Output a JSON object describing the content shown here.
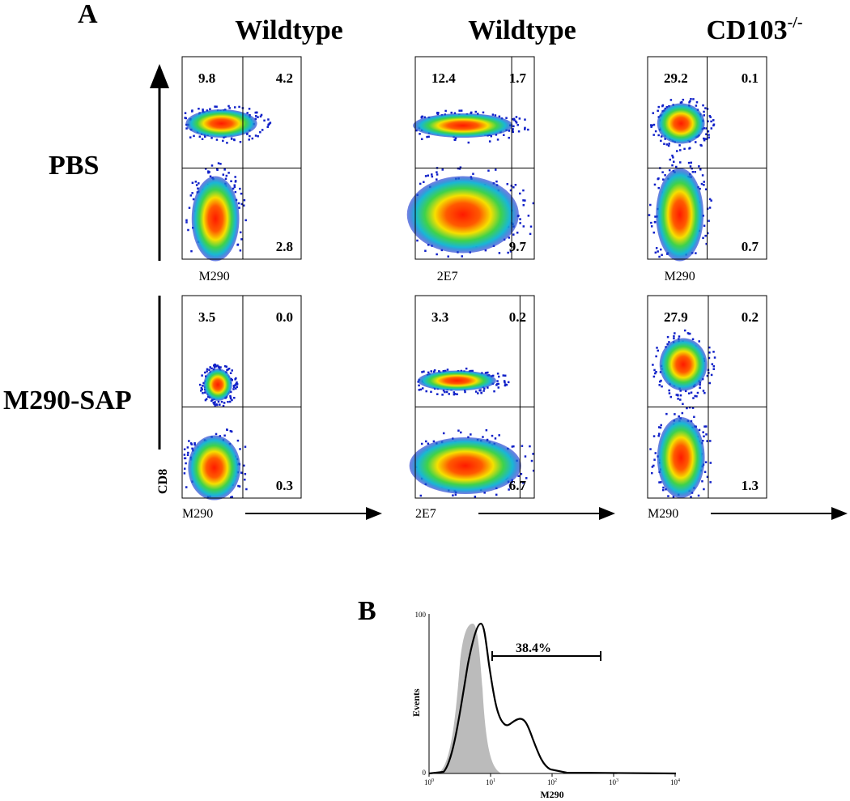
{
  "panel_a": {
    "label": "A",
    "columns": [
      {
        "text": "Wildtype"
      },
      {
        "text": "Wildtype"
      },
      {
        "text": "CD103",
        "sup": "-/-"
      }
    ],
    "rows": [
      "PBS",
      "M290-SAP"
    ],
    "y_axis_label": "CD8",
    "plots": [
      {
        "x_label": "M290",
        "top_left": "9.8",
        "top_right": "4.2",
        "bottom_right": "2.8"
      },
      {
        "x_label": "2E7",
        "top_left": "12.4",
        "top_right": "1.7",
        "bottom_right": "9.7"
      },
      {
        "x_label": "M290",
        "top_left": "29.2",
        "top_right": "0.1",
        "bottom_right": "0.7"
      },
      {
        "x_label": "M290",
        "top_left": "3.5",
        "top_right": "0.0",
        "bottom_right": "0.3"
      },
      {
        "x_label": "2E7",
        "top_left": "3.3",
        "top_right": "0.2",
        "bottom_right": "6.7"
      },
      {
        "x_label": "M290",
        "top_left": "27.9",
        "top_right": "0.2",
        "bottom_right": "1.3"
      }
    ]
  },
  "panel_b": {
    "label": "B",
    "gate_label": "38.4%",
    "x_label": "M290",
    "y_label": "Events",
    "yticks": [
      "0",
      "100"
    ],
    "xticks": [
      {
        "base": "10",
        "exp": "0"
      },
      {
        "base": "10",
        "exp": "1"
      },
      {
        "base": "10",
        "exp": "2"
      },
      {
        "base": "10",
        "exp": "3"
      },
      {
        "base": "10",
        "exp": "4"
      }
    ]
  }
}
